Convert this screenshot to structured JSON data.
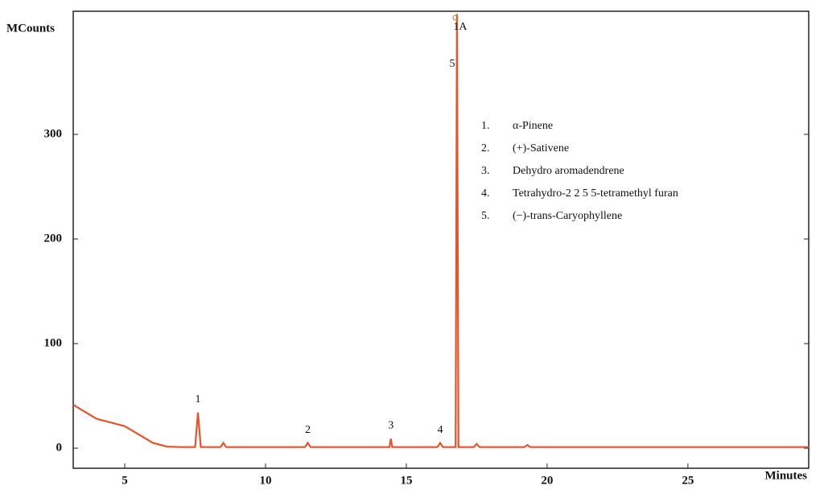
{
  "chart_data": {
    "type": "line",
    "y_label": "MCounts",
    "x_label": "Minutes",
    "xlim": [
      3.17,
      29.29
    ],
    "ylim": [
      -19.2,
      417.7
    ],
    "xticks": [
      5,
      10,
      15,
      20,
      25
    ],
    "yticks": [
      0,
      100,
      200,
      300
    ],
    "grid": false,
    "series": [
      {
        "color": "#e8532b",
        "x": [
          3.17,
          4,
          5,
          5.5,
          6,
          6.5,
          7,
          7.5,
          7.6,
          7.7,
          8.4,
          8.5,
          8.6,
          11.4,
          11.5,
          11.6,
          14.4,
          14.45,
          14.5,
          16.1,
          16.2,
          16.3,
          16.75,
          16.8,
          16.85,
          17.4,
          17.5,
          17.6,
          19.2,
          19.3,
          19.4,
          29.29
        ],
        "values": [
          41.5,
          28,
          21,
          13,
          5,
          1.5,
          1,
          1,
          34,
          1,
          1,
          5,
          1,
          1,
          5,
          1,
          1,
          9,
          1,
          1,
          5,
          1,
          1,
          415,
          1,
          1,
          4,
          1,
          1,
          3,
          1,
          1
        ]
      }
    ],
    "peaks": [
      {
        "label": "1",
        "x": 7.6
      },
      {
        "label": "2",
        "x": 11.5
      },
      {
        "label": "3",
        "x": 14.45
      },
      {
        "label": "4",
        "x": 16.2
      },
      {
        "label": "5",
        "x": 16.8
      }
    ],
    "peak_annotation": "1A",
    "compounds": [
      {
        "number": "1.",
        "name": "α-Pinene"
      },
      {
        "number": "2.",
        "name": "(+)-Sativene"
      },
      {
        "number": "3.",
        "name": "Dehydro aromadendrene"
      },
      {
        "number": "4.",
        "name": "Tetrahydro-2 2 5 5-tetramethyl furan"
      },
      {
        "number": "5.",
        "name": "(−)-trans-Caryophyllene"
      }
    ]
  }
}
